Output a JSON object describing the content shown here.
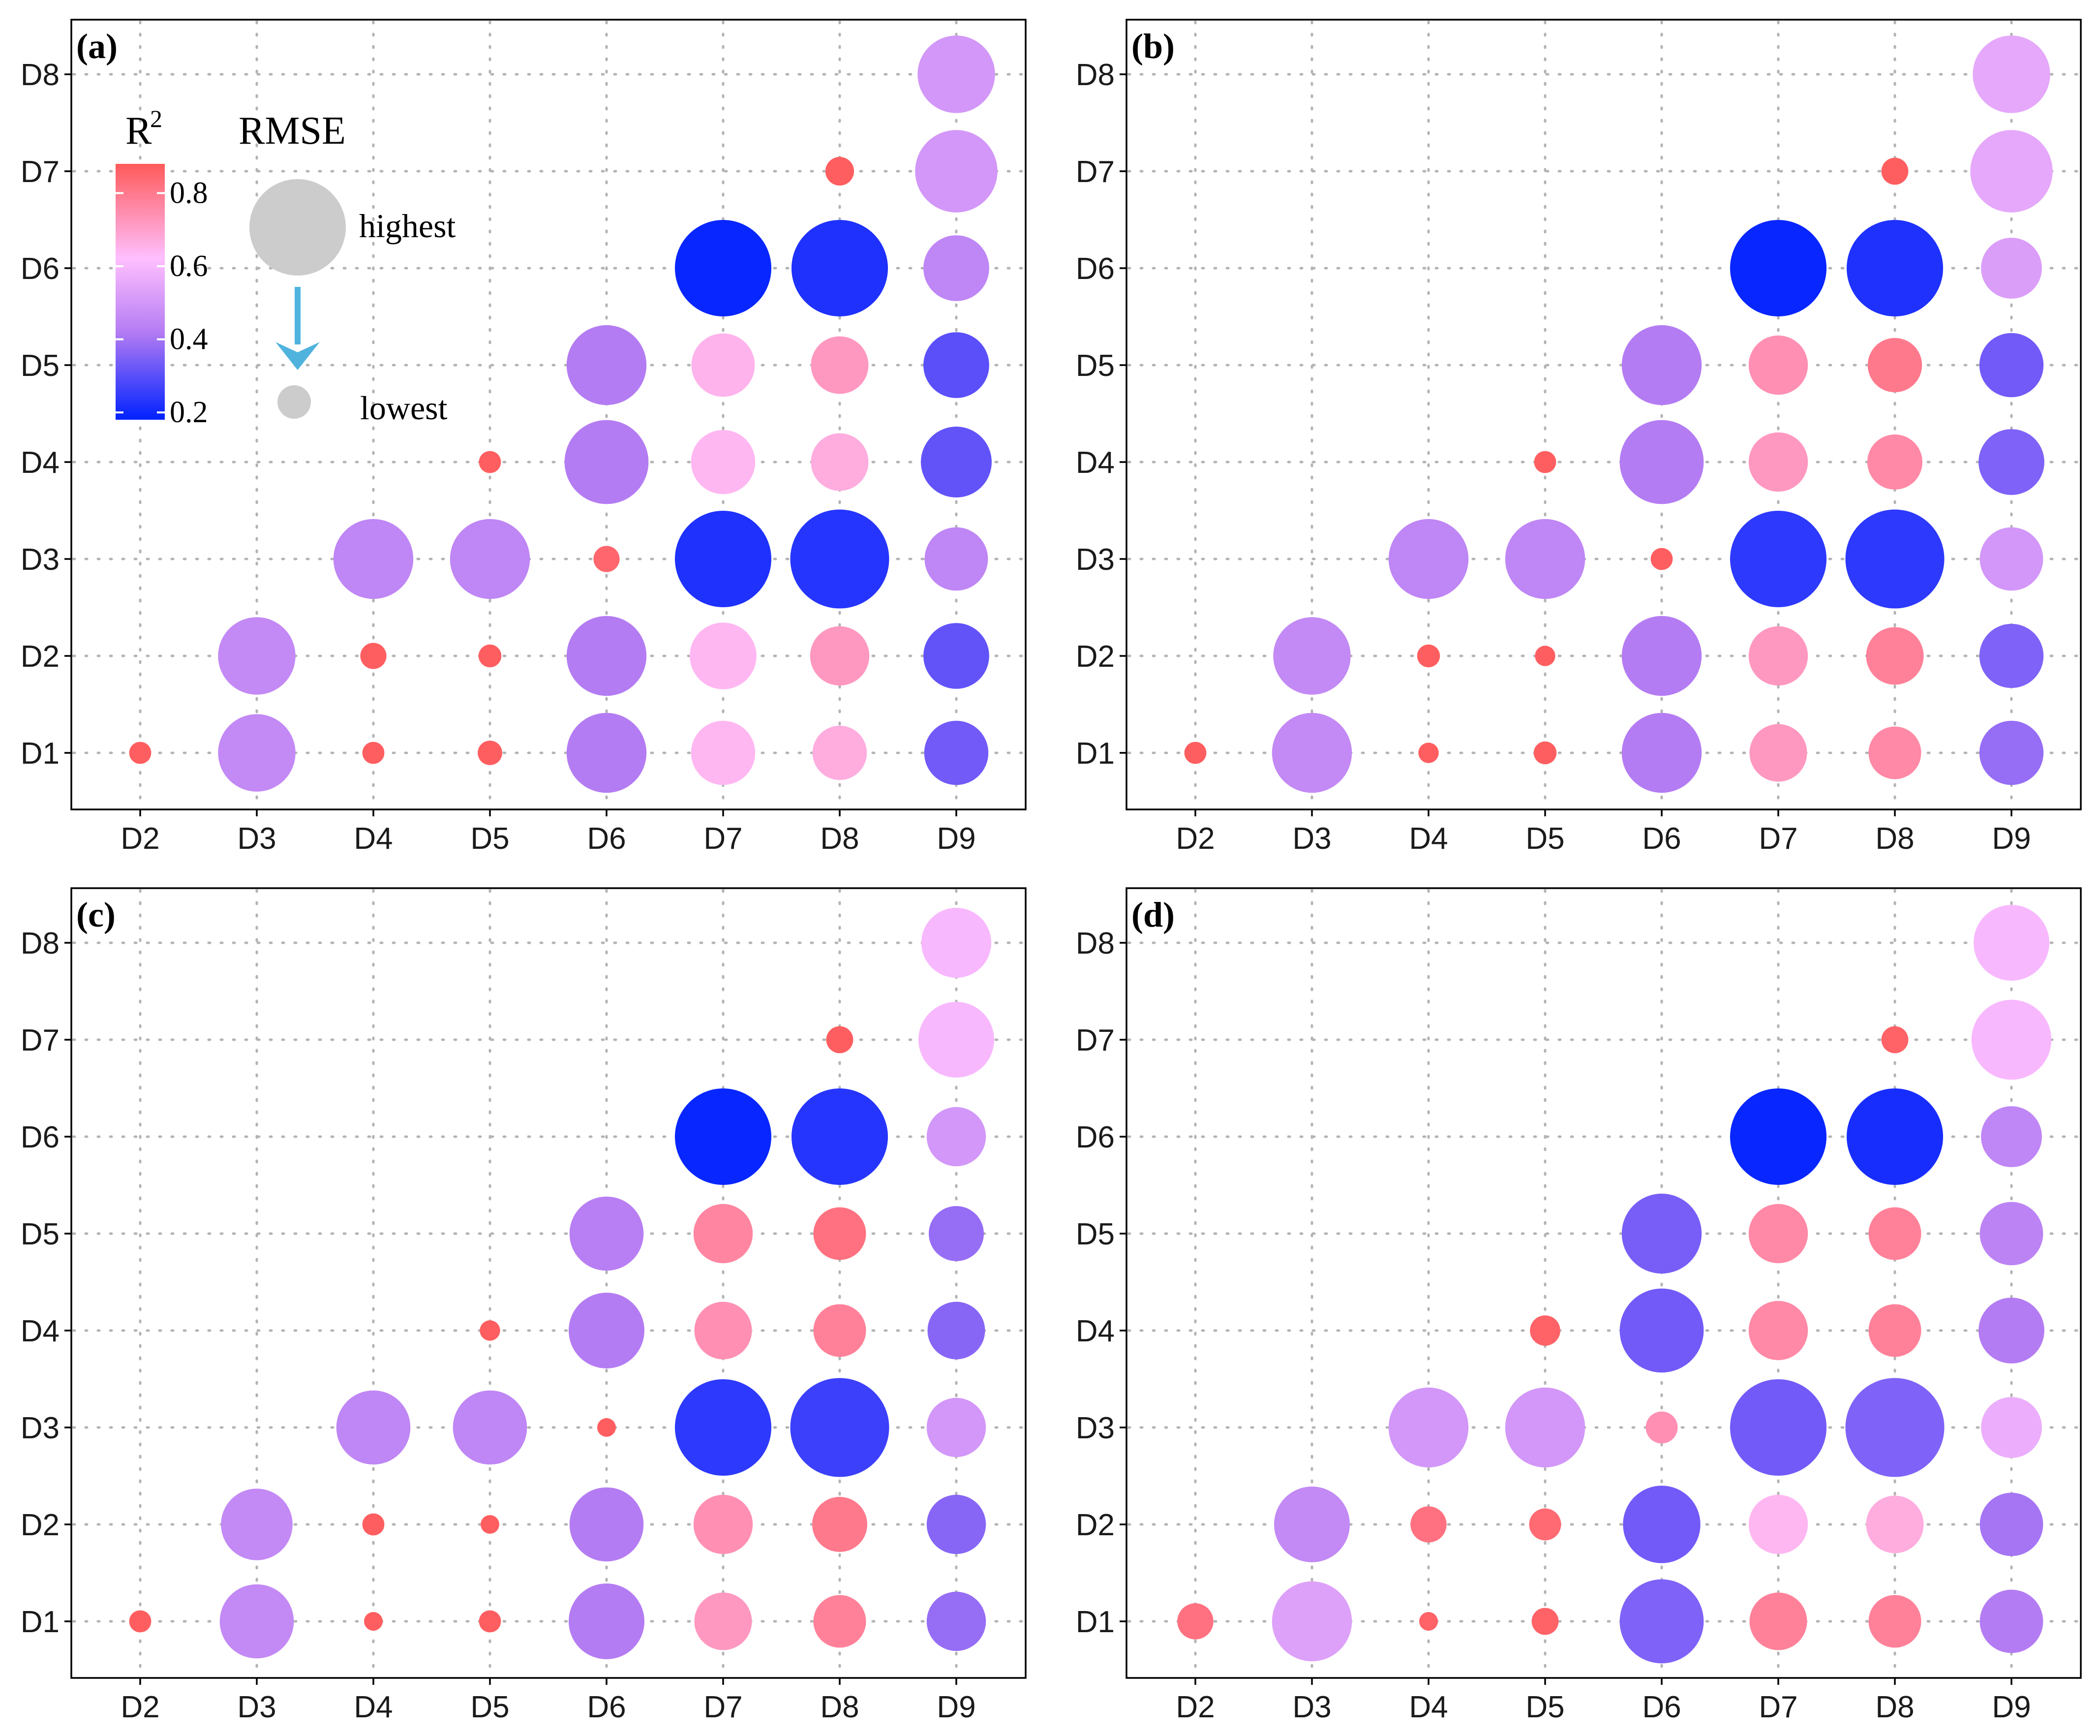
{
  "chart_data": {
    "type": "scatter",
    "x_categories": [
      "D2",
      "D3",
      "D4",
      "D5",
      "D6",
      "D7",
      "D8",
      "D9"
    ],
    "y_categories": [
      "D1",
      "D2",
      "D3",
      "D4",
      "D5",
      "D6",
      "D7",
      "D8"
    ],
    "color_scale": {
      "title": "R",
      "superscript": "2",
      "ticks": [
        {
          "value": 0.8,
          "label": "0.8"
        },
        {
          "value": 0.6,
          "label": "0.6"
        },
        {
          "value": 0.4,
          "label": "0.4"
        },
        {
          "value": 0.2,
          "label": "0.2"
        }
      ],
      "range": [
        0.18,
        0.88
      ],
      "stops": [
        {
          "value": 0.18,
          "color": "#0022ff"
        },
        {
          "value": 0.42,
          "color": "#b47cf3"
        },
        {
          "value": 0.62,
          "color": "#ffbfff"
        },
        {
          "value": 0.88,
          "color": "#ff5a5a"
        }
      ]
    },
    "size_legend": {
      "title": "RMSE",
      "high_label": "highest",
      "low_label": "lowest",
      "high_value": 1.0,
      "low_value": 0.2,
      "arrow_color": "#4fb3de",
      "marker_color": "#cccccc"
    },
    "panels": [
      {
        "label": "(a)",
        "points": [
          {
            "x": "D2",
            "y": "D1",
            "r2": 0.87,
            "rmse": 0.1
          },
          {
            "x": "D3",
            "y": "D1",
            "r2": 0.46,
            "rmse": 0.77
          },
          {
            "x": "D4",
            "y": "D1",
            "r2": 0.87,
            "rmse": 0.1
          },
          {
            "x": "D5",
            "y": "D1",
            "r2": 0.87,
            "rmse": 0.13
          },
          {
            "x": "D6",
            "y": "D1",
            "r2": 0.42,
            "rmse": 0.8
          },
          {
            "x": "D7",
            "y": "D1",
            "r2": 0.64,
            "rmse": 0.61
          },
          {
            "x": "D8",
            "y": "D1",
            "r2": 0.67,
            "rmse": 0.49
          },
          {
            "x": "D9",
            "y": "D1",
            "r2": 0.33,
            "rmse": 0.61
          },
          {
            "x": "D3",
            "y": "D2",
            "r2": 0.46,
            "rmse": 0.77
          },
          {
            "x": "D4",
            "y": "D2",
            "r2": 0.87,
            "rmse": 0.15
          },
          {
            "x": "D5",
            "y": "D2",
            "r2": 0.87,
            "rmse": 0.11
          },
          {
            "x": "D6",
            "y": "D2",
            "r2": 0.42,
            "rmse": 0.8
          },
          {
            "x": "D7",
            "y": "D2",
            "r2": 0.64,
            "rmse": 0.64
          },
          {
            "x": "D8",
            "y": "D2",
            "r2": 0.72,
            "rmse": 0.55
          },
          {
            "x": "D9",
            "y": "D2",
            "r2": 0.31,
            "rmse": 0.63
          },
          {
            "x": "D4",
            "y": "D3",
            "r2": 0.45,
            "rmse": 0.8
          },
          {
            "x": "D5",
            "y": "D3",
            "r2": 0.45,
            "rmse": 0.8
          },
          {
            "x": "D6",
            "y": "D3",
            "r2": 0.85,
            "rmse": 0.15
          },
          {
            "x": "D7",
            "y": "D3",
            "r2": 0.22,
            "rmse": 1.0
          },
          {
            "x": "D8",
            "y": "D3",
            "r2": 0.23,
            "rmse": 1.03
          },
          {
            "x": "D9",
            "y": "D3",
            "r2": 0.45,
            "rmse": 0.6
          },
          {
            "x": "D5",
            "y": "D4",
            "r2": 0.87,
            "rmse": 0.1
          },
          {
            "x": "D6",
            "y": "D4",
            "r2": 0.42,
            "rmse": 0.85
          },
          {
            "x": "D7",
            "y": "D4",
            "r2": 0.64,
            "rmse": 0.61
          },
          {
            "x": "D8",
            "y": "D4",
            "r2": 0.67,
            "rmse": 0.53
          },
          {
            "x": "D9",
            "y": "D4",
            "r2": 0.31,
            "rmse": 0.69
          },
          {
            "x": "D6",
            "y": "D5",
            "r2": 0.42,
            "rmse": 0.8
          },
          {
            "x": "D7",
            "y": "D5",
            "r2": 0.65,
            "rmse": 0.6
          },
          {
            "x": "D8",
            "y": "D5",
            "r2": 0.72,
            "rmse": 0.53
          },
          {
            "x": "D9",
            "y": "D5",
            "r2": 0.3,
            "rmse": 0.63
          },
          {
            "x": "D7",
            "y": "D6",
            "r2": 0.19,
            "rmse": 1.0
          },
          {
            "x": "D8",
            "y": "D6",
            "r2": 0.22,
            "rmse": 1.0
          },
          {
            "x": "D9",
            "y": "D6",
            "r2": 0.45,
            "rmse": 0.63
          },
          {
            "x": "D8",
            "y": "D7",
            "r2": 0.87,
            "rmse": 0.18
          },
          {
            "x": "D9",
            "y": "D7",
            "r2": 0.5,
            "rmse": 0.83
          },
          {
            "x": "D9",
            "y": "D8",
            "r2": 0.5,
            "rmse": 0.77
          }
        ]
      },
      {
        "label": "(b)",
        "points": [
          {
            "x": "D2",
            "y": "D1",
            "r2": 0.87,
            "rmse": 0.1
          },
          {
            "x": "D3",
            "y": "D1",
            "r2": 0.46,
            "rmse": 0.8
          },
          {
            "x": "D4",
            "y": "D1",
            "r2": 0.87,
            "rmse": 0.08
          },
          {
            "x": "D5",
            "y": "D1",
            "r2": 0.87,
            "rmse": 0.11
          },
          {
            "x": "D6",
            "y": "D1",
            "r2": 0.42,
            "rmse": 0.8
          },
          {
            "x": "D7",
            "y": "D1",
            "r2": 0.72,
            "rmse": 0.53
          },
          {
            "x": "D8",
            "y": "D1",
            "r2": 0.76,
            "rmse": 0.47
          },
          {
            "x": "D9",
            "y": "D1",
            "r2": 0.38,
            "rmse": 0.61
          },
          {
            "x": "D3",
            "y": "D2",
            "r2": 0.46,
            "rmse": 0.77
          },
          {
            "x": "D4",
            "y": "D2",
            "r2": 0.87,
            "rmse": 0.11
          },
          {
            "x": "D5",
            "y": "D2",
            "r2": 0.87,
            "rmse": 0.08
          },
          {
            "x": "D6",
            "y": "D2",
            "r2": 0.42,
            "rmse": 0.8
          },
          {
            "x": "D7",
            "y": "D2",
            "r2": 0.72,
            "rmse": 0.55
          },
          {
            "x": "D8",
            "y": "D2",
            "r2": 0.78,
            "rmse": 0.53
          },
          {
            "x": "D9",
            "y": "D2",
            "r2": 0.35,
            "rmse": 0.61
          },
          {
            "x": "D4",
            "y": "D3",
            "r2": 0.45,
            "rmse": 0.8
          },
          {
            "x": "D5",
            "y": "D3",
            "r2": 0.45,
            "rmse": 0.8
          },
          {
            "x": "D6",
            "y": "D3",
            "r2": 0.87,
            "rmse": 0.1
          },
          {
            "x": "D7",
            "y": "D3",
            "r2": 0.24,
            "rmse": 1.0
          },
          {
            "x": "D8",
            "y": "D3",
            "r2": 0.24,
            "rmse": 1.03
          },
          {
            "x": "D9",
            "y": "D3",
            "r2": 0.5,
            "rmse": 0.6
          },
          {
            "x": "D5",
            "y": "D4",
            "r2": 0.87,
            "rmse": 0.1
          },
          {
            "x": "D6",
            "y": "D4",
            "r2": 0.42,
            "rmse": 0.85
          },
          {
            "x": "D7",
            "y": "D4",
            "r2": 0.72,
            "rmse": 0.55
          },
          {
            "x": "D8",
            "y": "D4",
            "r2": 0.76,
            "rmse": 0.5
          },
          {
            "x": "D9",
            "y": "D4",
            "r2": 0.35,
            "rmse": 0.63
          },
          {
            "x": "D6",
            "y": "D5",
            "r2": 0.42,
            "rmse": 0.8
          },
          {
            "x": "D7",
            "y": "D5",
            "r2": 0.74,
            "rmse": 0.55
          },
          {
            "x": "D8",
            "y": "D5",
            "r2": 0.8,
            "rmse": 0.49
          },
          {
            "x": "D9",
            "y": "D5",
            "r2": 0.33,
            "rmse": 0.61
          },
          {
            "x": "D7",
            "y": "D6",
            "r2": 0.19,
            "rmse": 1.0
          },
          {
            "x": "D8",
            "y": "D6",
            "r2": 0.22,
            "rmse": 1.0
          },
          {
            "x": "D9",
            "y": "D6",
            "r2": 0.52,
            "rmse": 0.57
          },
          {
            "x": "D8",
            "y": "D7",
            "r2": 0.87,
            "rmse": 0.16
          },
          {
            "x": "D9",
            "y": "D7",
            "r2": 0.55,
            "rmse": 0.83
          },
          {
            "x": "D9",
            "y": "D8",
            "r2": 0.55,
            "rmse": 0.77
          }
        ]
      },
      {
        "label": "(c)",
        "points": [
          {
            "x": "D2",
            "y": "D1",
            "r2": 0.87,
            "rmse": 0.1
          },
          {
            "x": "D3",
            "y": "D1",
            "r2": 0.46,
            "rmse": 0.73
          },
          {
            "x": "D4",
            "y": "D1",
            "r2": 0.87,
            "rmse": 0.06
          },
          {
            "x": "D5",
            "y": "D1",
            "r2": 0.87,
            "rmse": 0.1
          },
          {
            "x": "D6",
            "y": "D1",
            "r2": 0.42,
            "rmse": 0.75
          },
          {
            "x": "D7",
            "y": "D1",
            "r2": 0.72,
            "rmse": 0.53
          },
          {
            "x": "D8",
            "y": "D1",
            "r2": 0.78,
            "rmse": 0.47
          },
          {
            "x": "D9",
            "y": "D1",
            "r2": 0.38,
            "rmse": 0.55
          },
          {
            "x": "D3",
            "y": "D2",
            "r2": 0.46,
            "rmse": 0.7
          },
          {
            "x": "D4",
            "y": "D2",
            "r2": 0.87,
            "rmse": 0.1
          },
          {
            "x": "D5",
            "y": "D2",
            "r2": 0.87,
            "rmse": 0.06
          },
          {
            "x": "D6",
            "y": "D2",
            "r2": 0.42,
            "rmse": 0.73
          },
          {
            "x": "D7",
            "y": "D2",
            "r2": 0.74,
            "rmse": 0.55
          },
          {
            "x": "D8",
            "y": "D2",
            "r2": 0.8,
            "rmse": 0.5
          },
          {
            "x": "D9",
            "y": "D2",
            "r2": 0.36,
            "rmse": 0.55
          },
          {
            "x": "D4",
            "y": "D3",
            "r2": 0.45,
            "rmse": 0.73
          },
          {
            "x": "D5",
            "y": "D3",
            "r2": 0.45,
            "rmse": 0.73
          },
          {
            "x": "D6",
            "y": "D3",
            "r2": 0.87,
            "rmse": 0.06
          },
          {
            "x": "D7",
            "y": "D3",
            "r2": 0.24,
            "rmse": 1.0
          },
          {
            "x": "D8",
            "y": "D3",
            "r2": 0.26,
            "rmse": 1.03
          },
          {
            "x": "D9",
            "y": "D3",
            "r2": 0.5,
            "rmse": 0.55
          },
          {
            "x": "D5",
            "y": "D4",
            "r2": 0.87,
            "rmse": 0.08
          },
          {
            "x": "D6",
            "y": "D4",
            "r2": 0.42,
            "rmse": 0.75
          },
          {
            "x": "D7",
            "y": "D4",
            "r2": 0.74,
            "rmse": 0.53
          },
          {
            "x": "D8",
            "y": "D4",
            "r2": 0.78,
            "rmse": 0.47
          },
          {
            "x": "D9",
            "y": "D4",
            "r2": 0.36,
            "rmse": 0.53
          },
          {
            "x": "D6",
            "y": "D5",
            "r2": 0.43,
            "rmse": 0.73
          },
          {
            "x": "D7",
            "y": "D5",
            "r2": 0.77,
            "rmse": 0.55
          },
          {
            "x": "D8",
            "y": "D5",
            "r2": 0.82,
            "rmse": 0.47
          },
          {
            "x": "D9",
            "y": "D5",
            "r2": 0.38,
            "rmse": 0.5
          },
          {
            "x": "D7",
            "y": "D6",
            "r2": 0.19,
            "rmse": 1.0
          },
          {
            "x": "D8",
            "y": "D6",
            "r2": 0.23,
            "rmse": 1.0
          },
          {
            "x": "D9",
            "y": "D6",
            "r2": 0.5,
            "rmse": 0.55
          },
          {
            "x": "D8",
            "y": "D7",
            "r2": 0.87,
            "rmse": 0.16
          },
          {
            "x": "D9",
            "y": "D7",
            "r2": 0.6,
            "rmse": 0.75
          },
          {
            "x": "D9",
            "y": "D8",
            "r2": 0.6,
            "rmse": 0.68
          }
        ]
      },
      {
        "label": "(d)",
        "points": [
          {
            "x": "D2",
            "y": "D1",
            "r2": 0.82,
            "rmse": 0.27
          },
          {
            "x": "D3",
            "y": "D1",
            "r2": 0.53,
            "rmse": 0.8
          },
          {
            "x": "D4",
            "y": "D1",
            "r2": 0.86,
            "rmse": 0.06
          },
          {
            "x": "D5",
            "y": "D1",
            "r2": 0.86,
            "rmse": 0.16
          },
          {
            "x": "D6",
            "y": "D1",
            "r2": 0.35,
            "rmse": 0.85
          },
          {
            "x": "D7",
            "y": "D1",
            "r2": 0.78,
            "rmse": 0.53
          },
          {
            "x": "D8",
            "y": "D1",
            "r2": 0.78,
            "rmse": 0.47
          },
          {
            "x": "D9",
            "y": "D1",
            "r2": 0.42,
            "rmse": 0.6
          },
          {
            "x": "D3",
            "y": "D2",
            "r2": 0.46,
            "rmse": 0.75
          },
          {
            "x": "D4",
            "y": "D2",
            "r2": 0.82,
            "rmse": 0.27
          },
          {
            "x": "D5",
            "y": "D2",
            "r2": 0.84,
            "rmse": 0.22
          },
          {
            "x": "D6",
            "y": "D2",
            "r2": 0.33,
            "rmse": 0.77
          },
          {
            "x": "D7",
            "y": "D2",
            "r2": 0.64,
            "rmse": 0.55
          },
          {
            "x": "D8",
            "y": "D2",
            "r2": 0.67,
            "rmse": 0.53
          },
          {
            "x": "D9",
            "y": "D2",
            "r2": 0.4,
            "rmse": 0.6
          },
          {
            "x": "D4",
            "y": "D3",
            "r2": 0.5,
            "rmse": 0.8
          },
          {
            "x": "D5",
            "y": "D3",
            "r2": 0.5,
            "rmse": 0.8
          },
          {
            "x": "D6",
            "y": "D3",
            "r2": 0.74,
            "rmse": 0.22
          },
          {
            "x": "D7",
            "y": "D3",
            "r2": 0.33,
            "rmse": 1.0
          },
          {
            "x": "D8",
            "y": "D3",
            "r2": 0.35,
            "rmse": 1.03
          },
          {
            "x": "D9",
            "y": "D3",
            "r2": 0.57,
            "rmse": 0.57
          },
          {
            "x": "D5",
            "y": "D4",
            "r2": 0.86,
            "rmse": 0.2
          },
          {
            "x": "D6",
            "y": "D4",
            "r2": 0.33,
            "rmse": 0.85
          },
          {
            "x": "D7",
            "y": "D4",
            "r2": 0.76,
            "rmse": 0.55
          },
          {
            "x": "D8",
            "y": "D4",
            "r2": 0.78,
            "rmse": 0.47
          },
          {
            "x": "D9",
            "y": "D4",
            "r2": 0.42,
            "rmse": 0.63
          },
          {
            "x": "D6",
            "y": "D5",
            "r2": 0.34,
            "rmse": 0.8
          },
          {
            "x": "D7",
            "y": "D5",
            "r2": 0.76,
            "rmse": 0.55
          },
          {
            "x": "D8",
            "y": "D5",
            "r2": 0.78,
            "rmse": 0.47
          },
          {
            "x": "D9",
            "y": "D5",
            "r2": 0.44,
            "rmse": 0.6
          },
          {
            "x": "D7",
            "y": "D6",
            "r2": 0.19,
            "rmse": 1.0
          },
          {
            "x": "D8",
            "y": "D6",
            "r2": 0.21,
            "rmse": 1.0
          },
          {
            "x": "D9",
            "y": "D6",
            "r2": 0.45,
            "rmse": 0.57
          },
          {
            "x": "D8",
            "y": "D7",
            "r2": 0.86,
            "rmse": 0.16
          },
          {
            "x": "D9",
            "y": "D7",
            "r2": 0.6,
            "rmse": 0.8
          },
          {
            "x": "D9",
            "y": "D8",
            "r2": 0.6,
            "rmse": 0.75
          }
        ]
      }
    ]
  }
}
